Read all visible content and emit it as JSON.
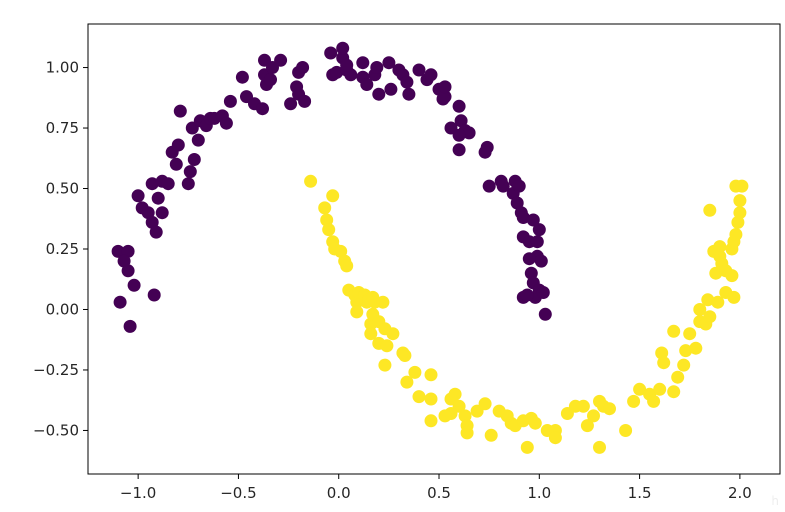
{
  "chart_data": {
    "type": "scatter",
    "xlim": [
      -1.25,
      2.2
    ],
    "ylim": [
      -0.68,
      1.18
    ],
    "x_ticks": [
      -1.0,
      -0.5,
      0.0,
      0.5,
      1.0,
      1.5,
      2.0
    ],
    "x_tick_labels": [
      "−1.0",
      "−0.5",
      "0.0",
      "0.5",
      "1.0",
      "1.5",
      "2.0"
    ],
    "y_ticks": [
      -0.5,
      -0.25,
      0.0,
      0.25,
      0.5,
      0.75,
      1.0
    ],
    "y_tick_labels": [
      "−0.50",
      "−0.25",
      "0.00",
      "0.25",
      "0.50",
      "0.75",
      "1.00"
    ],
    "grid": false,
    "legend": "none",
    "marker_colors": {
      "class_0": "#440154",
      "class_1": "#fde725"
    },
    "series": [
      {
        "class": 0,
        "color": "#440154",
        "points": [
          [
            -1.1,
            0.24
          ],
          [
            -1.05,
            0.24
          ],
          [
            -1.07,
            0.2
          ],
          [
            -1.05,
            0.16
          ],
          [
            -1.02,
            0.1
          ],
          [
            -1.09,
            0.03
          ],
          [
            -1.04,
            -0.07
          ],
          [
            -0.92,
            0.06
          ],
          [
            -1.0,
            0.47
          ],
          [
            -0.98,
            0.42
          ],
          [
            -0.95,
            0.4
          ],
          [
            -0.93,
            0.36
          ],
          [
            -0.91,
            0.32
          ],
          [
            -0.88,
            0.4
          ],
          [
            -0.9,
            0.46
          ],
          [
            -0.93,
            0.52
          ],
          [
            -0.88,
            0.53
          ],
          [
            -0.85,
            0.52
          ],
          [
            -0.81,
            0.6
          ],
          [
            -0.83,
            0.65
          ],
          [
            -0.8,
            0.68
          ],
          [
            -0.75,
            0.52
          ],
          [
            -0.74,
            0.57
          ],
          [
            -0.72,
            0.62
          ],
          [
            -0.7,
            0.7
          ],
          [
            -0.73,
            0.75
          ],
          [
            -0.69,
            0.78
          ],
          [
            -0.66,
            0.76
          ],
          [
            -0.64,
            0.79
          ],
          [
            -0.62,
            0.79
          ],
          [
            -0.58,
            0.8
          ],
          [
            -0.56,
            0.77
          ],
          [
            -0.54,
            0.86
          ],
          [
            -0.79,
            0.82
          ],
          [
            -0.48,
            0.96
          ],
          [
            -0.46,
            0.88
          ],
          [
            -0.42,
            0.85
          ],
          [
            -0.38,
            0.83
          ],
          [
            -0.36,
            0.93
          ],
          [
            -0.37,
            0.97
          ],
          [
            -0.34,
            0.95
          ],
          [
            -0.37,
            1.03
          ],
          [
            -0.33,
            1.0
          ],
          [
            -0.29,
            1.03
          ],
          [
            -0.21,
            0.92
          ],
          [
            -0.2,
            0.98
          ],
          [
            -0.18,
            1.0
          ],
          [
            -0.24,
            0.85
          ],
          [
            -0.2,
            0.89
          ],
          [
            -0.17,
            0.86
          ],
          [
            -0.04,
            1.06
          ],
          [
            -0.03,
            0.97
          ],
          [
            -0.01,
            0.98
          ],
          [
            0.02,
            1.04
          ],
          [
            0.02,
            1.08
          ],
          [
            0.04,
            0.99
          ],
          [
            0.06,
            0.97
          ],
          [
            0.04,
            1.01
          ],
          [
            0.12,
            1.02
          ],
          [
            0.12,
            0.96
          ],
          [
            0.14,
            0.93
          ],
          [
            0.2,
            0.89
          ],
          [
            0.18,
            0.97
          ],
          [
            0.19,
            1.0
          ],
          [
            0.25,
            1.02
          ],
          [
            0.26,
            0.91
          ],
          [
            0.3,
            0.99
          ],
          [
            0.32,
            0.97
          ],
          [
            0.35,
            0.89
          ],
          [
            0.34,
            0.94
          ],
          [
            0.4,
            0.99
          ],
          [
            0.44,
            0.95
          ],
          [
            0.46,
            0.97
          ],
          [
            0.5,
            0.91
          ],
          [
            0.52,
            0.87
          ],
          [
            0.53,
            0.88
          ],
          [
            0.53,
            0.92
          ],
          [
            0.6,
            0.84
          ],
          [
            0.61,
            0.78
          ],
          [
            0.63,
            0.74
          ],
          [
            0.65,
            0.73
          ],
          [
            0.6,
            0.72
          ],
          [
            0.6,
            0.66
          ],
          [
            0.56,
            0.75
          ],
          [
            0.74,
            0.67
          ],
          [
            0.73,
            0.65
          ],
          [
            0.75,
            0.51
          ],
          [
            0.81,
            0.53
          ],
          [
            0.82,
            0.51
          ],
          [
            0.88,
            0.53
          ],
          [
            0.87,
            0.48
          ],
          [
            0.9,
            0.51
          ],
          [
            0.89,
            0.44
          ],
          [
            0.91,
            0.4
          ],
          [
            0.92,
            0.38
          ],
          [
            0.92,
            0.3
          ],
          [
            0.95,
            0.28
          ],
          [
            0.97,
            0.37
          ],
          [
            1.0,
            0.33
          ],
          [
            0.99,
            0.28
          ],
          [
            0.99,
            0.22
          ],
          [
            1.01,
            0.2
          ],
          [
            0.95,
            0.21
          ],
          [
            0.96,
            0.15
          ],
          [
            0.97,
            0.11
          ],
          [
            1.0,
            0.08
          ],
          [
            0.98,
            0.05
          ],
          [
            0.92,
            0.05
          ],
          [
            0.94,
            0.06
          ],
          [
            1.02,
            0.07
          ],
          [
            1.03,
            -0.02
          ]
        ]
      },
      {
        "class": 1,
        "color": "#fde725",
        "points": [
          [
            -0.14,
            0.53
          ],
          [
            -0.07,
            0.42
          ],
          [
            -0.03,
            0.47
          ],
          [
            -0.06,
            0.37
          ],
          [
            -0.05,
            0.33
          ],
          [
            -0.03,
            0.28
          ],
          [
            -0.02,
            0.25
          ],
          [
            0.01,
            0.24
          ],
          [
            0.03,
            0.2
          ],
          [
            0.04,
            0.18
          ],
          [
            0.05,
            0.08
          ],
          [
            0.08,
            0.06
          ],
          [
            0.09,
            0.03
          ],
          [
            0.1,
            0.07
          ],
          [
            0.13,
            0.06
          ],
          [
            0.14,
            0.03
          ],
          [
            0.15,
            0.04
          ],
          [
            0.17,
            0.05
          ],
          [
            0.18,
            0.03
          ],
          [
            0.22,
            0.03
          ],
          [
            0.09,
            -0.01
          ],
          [
            0.16,
            -0.06
          ],
          [
            0.17,
            -0.02
          ],
          [
            0.2,
            -0.05
          ],
          [
            0.23,
            -0.08
          ],
          [
            0.16,
            -0.1
          ],
          [
            0.2,
            -0.14
          ],
          [
            0.24,
            -0.15
          ],
          [
            0.23,
            -0.23
          ],
          [
            0.32,
            -0.18
          ],
          [
            0.33,
            -0.19
          ],
          [
            0.27,
            -0.1
          ],
          [
            0.34,
            -0.3
          ],
          [
            0.38,
            -0.26
          ],
          [
            0.4,
            -0.36
          ],
          [
            0.46,
            -0.27
          ],
          [
            0.46,
            -0.37
          ],
          [
            0.56,
            -0.37
          ],
          [
            0.58,
            -0.35
          ],
          [
            0.6,
            -0.4
          ],
          [
            0.63,
            -0.44
          ],
          [
            0.56,
            -0.43
          ],
          [
            0.53,
            -0.44
          ],
          [
            0.46,
            -0.46
          ],
          [
            0.64,
            -0.48
          ],
          [
            0.64,
            -0.51
          ],
          [
            0.69,
            -0.42
          ],
          [
            0.73,
            -0.39
          ],
          [
            0.76,
            -0.52
          ],
          [
            0.8,
            -0.42
          ],
          [
            0.84,
            -0.44
          ],
          [
            0.86,
            -0.47
          ],
          [
            0.88,
            -0.48
          ],
          [
            0.92,
            -0.46
          ],
          [
            0.96,
            -0.45
          ],
          [
            0.98,
            -0.47
          ],
          [
            0.94,
            -0.57
          ],
          [
            1.04,
            -0.5
          ],
          [
            1.08,
            -0.5
          ],
          [
            1.08,
            -0.53
          ],
          [
            1.14,
            -0.43
          ],
          [
            1.18,
            -0.4
          ],
          [
            1.22,
            -0.4
          ],
          [
            1.24,
            -0.48
          ],
          [
            1.27,
            -0.44
          ],
          [
            1.3,
            -0.38
          ],
          [
            1.32,
            -0.4
          ],
          [
            1.3,
            -0.57
          ],
          [
            1.35,
            -0.41
          ],
          [
            1.43,
            -0.5
          ],
          [
            1.47,
            -0.38
          ],
          [
            1.5,
            -0.33
          ],
          [
            1.55,
            -0.35
          ],
          [
            1.57,
            -0.38
          ],
          [
            1.6,
            -0.33
          ],
          [
            1.67,
            -0.34
          ],
          [
            1.69,
            -0.28
          ],
          [
            1.61,
            -0.18
          ],
          [
            1.62,
            -0.22
          ],
          [
            1.67,
            -0.09
          ],
          [
            1.72,
            -0.23
          ],
          [
            1.73,
            -0.17
          ],
          [
            1.75,
            -0.1
          ],
          [
            1.78,
            -0.16
          ],
          [
            1.8,
            -0.05
          ],
          [
            1.8,
            0.0
          ],
          [
            1.83,
            -0.06
          ],
          [
            1.85,
            -0.03
          ],
          [
            1.84,
            0.04
          ],
          [
            1.89,
            0.03
          ],
          [
            1.93,
            0.07
          ],
          [
            1.97,
            0.05
          ],
          [
            1.88,
            0.15
          ],
          [
            1.87,
            0.24
          ],
          [
            1.9,
            0.26
          ],
          [
            1.9,
            0.22
          ],
          [
            1.91,
            0.19
          ],
          [
            1.93,
            0.16
          ],
          [
            1.96,
            0.14
          ],
          [
            1.96,
            0.25
          ],
          [
            1.97,
            0.28
          ],
          [
            1.98,
            0.31
          ],
          [
            1.99,
            0.36
          ],
          [
            2.0,
            0.4
          ],
          [
            2.0,
            0.45
          ],
          [
            2.01,
            0.51
          ],
          [
            1.98,
            0.51
          ],
          [
            1.85,
            0.41
          ]
        ]
      }
    ]
  },
  "watermark": "h"
}
